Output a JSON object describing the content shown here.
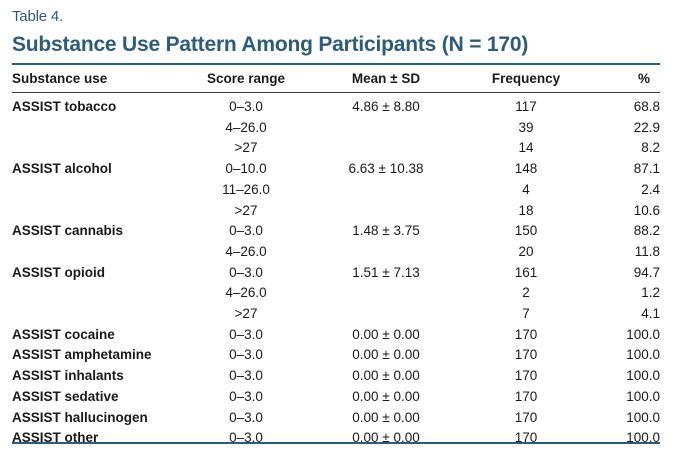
{
  "table": {
    "label": "Table 4.",
    "title": "Substance Use Pattern Among Participants (N = 170)",
    "columns": [
      "Substance use",
      "Score range",
      "Mean ± SD",
      "Frequency",
      "%"
    ],
    "rows": [
      [
        "ASSIST tobacco",
        "0–3.0",
        "4.86 ± 8.80",
        "117",
        "68.8"
      ],
      [
        "",
        "4–26.0",
        "",
        "39",
        "22.9"
      ],
      [
        "",
        ">27",
        "",
        "14",
        "8.2"
      ],
      [
        "ASSIST alcohol",
        "0–10.0",
        "6.63 ± 10.38",
        "148",
        "87.1"
      ],
      [
        "",
        "11–26.0",
        "",
        "4",
        "2.4"
      ],
      [
        "",
        ">27",
        "",
        "18",
        "10.6"
      ],
      [
        "ASSIST cannabis",
        "0–3.0",
        "1.48 ± 3.75",
        "150",
        "88.2"
      ],
      [
        "",
        "4–26.0",
        "",
        "20",
        "11.8"
      ],
      [
        "ASSIST opioid",
        "0–3.0",
        "1.51 ± 7.13",
        "161",
        "94.7"
      ],
      [
        "",
        "4–26.0",
        "",
        "2",
        "1.2"
      ],
      [
        "",
        ">27",
        "",
        "7",
        "4.1"
      ],
      [
        "ASSIST cocaine",
        "0–3.0",
        "0.00 ± 0.00",
        "170",
        "100.0"
      ],
      [
        "ASSIST amphetamine",
        "0–3.0",
        "0.00 ± 0.00",
        "170",
        "100.0"
      ],
      [
        "ASSIST inhalants",
        "0–3.0",
        "0.00 ± 0.00",
        "170",
        "100.0"
      ],
      [
        "ASSIST sedative",
        "0–3.0",
        "0.00 ± 0.00",
        "170",
        "100.0"
      ],
      [
        "ASSIST hallucinogen",
        "0–3.0",
        "0.00 ± 0.00",
        "170",
        "100.0"
      ],
      [
        "ASSIST other",
        "0–3.0",
        "0.00 ± 0.00",
        "170",
        "100.0"
      ]
    ]
  }
}
